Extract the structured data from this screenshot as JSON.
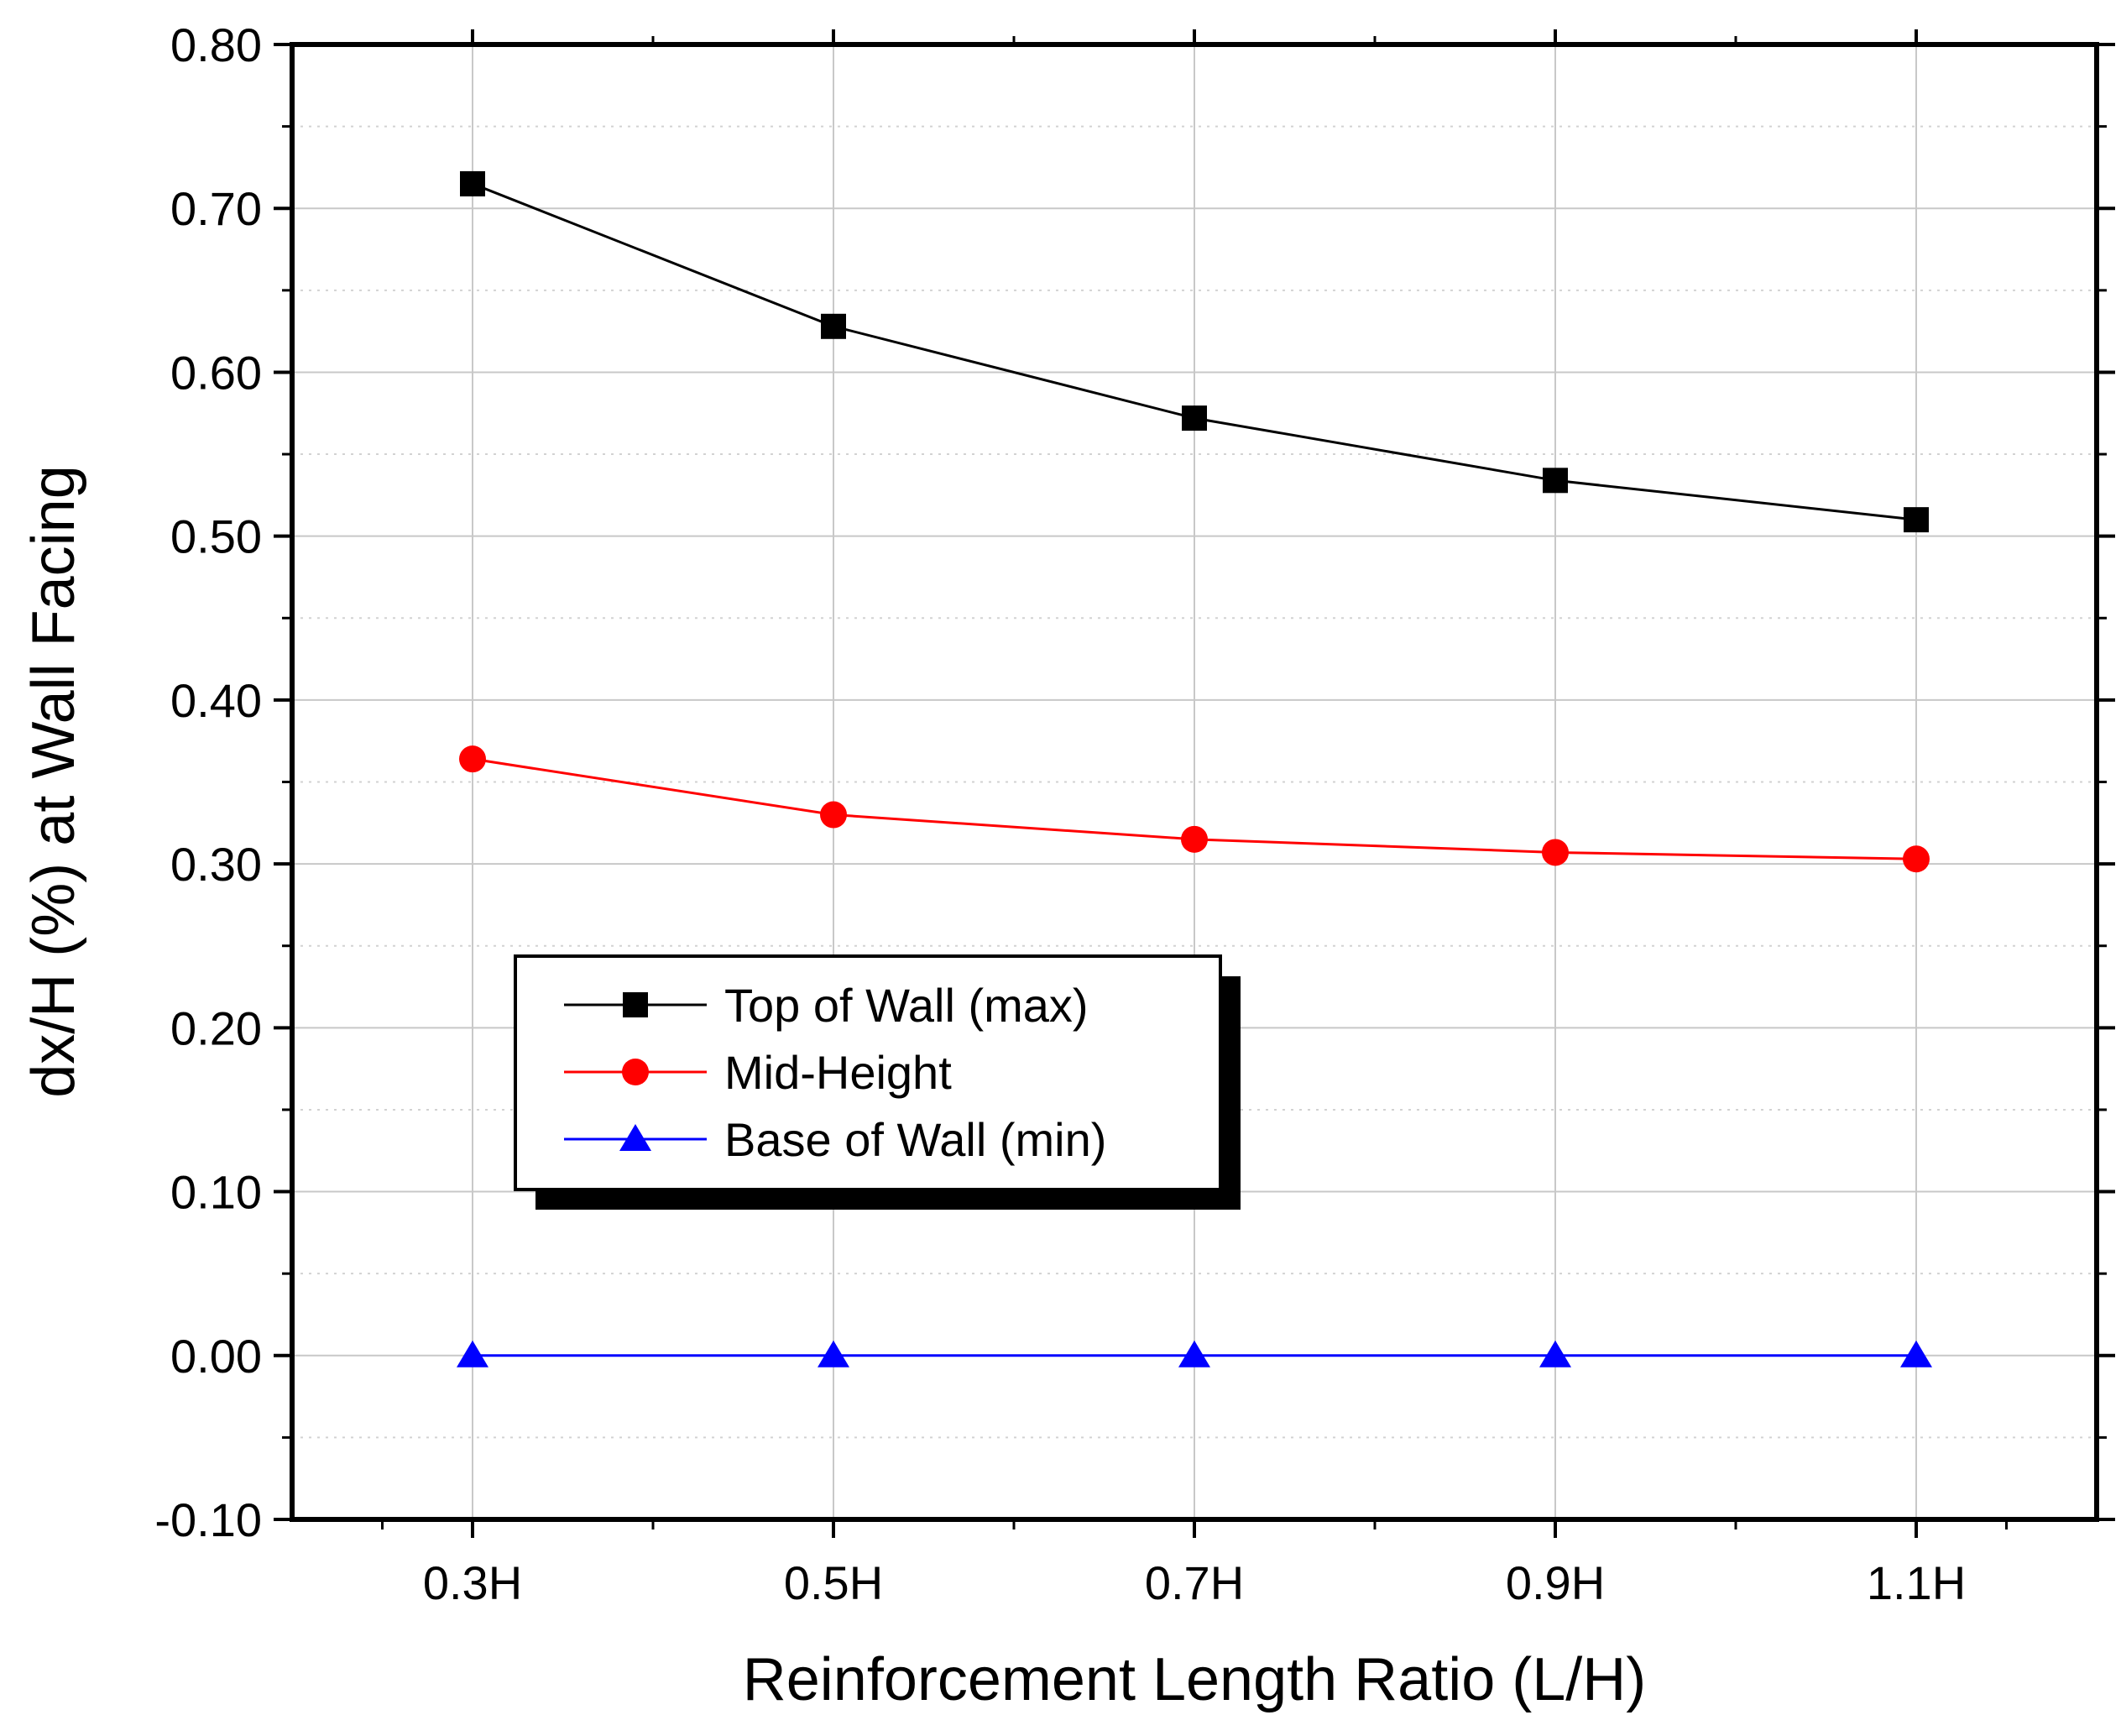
{
  "chart_data": {
    "type": "line",
    "title": "",
    "xlabel": "Reinforcement Length Ratio (L/H)",
    "ylabel": "dx/H (%) at Wall Facing",
    "categories": [
      "0.3H",
      "0.5H",
      "0.7H",
      "0.9H",
      "1.1H"
    ],
    "x": [
      0.3,
      0.5,
      0.7,
      0.9,
      1.1
    ],
    "xlim": [
      0.2,
      1.2
    ],
    "ylim": [
      -0.1,
      0.8
    ],
    "yticks": [
      -0.1,
      0.0,
      0.1,
      0.2,
      0.3,
      0.4,
      0.5,
      0.6,
      0.7,
      0.8
    ],
    "ytick_labels": [
      "-0.10",
      "0.00",
      "0.10",
      "0.20",
      "0.30",
      "0.40",
      "0.50",
      "0.60",
      "0.70",
      "0.80"
    ],
    "grid": true,
    "legend_position": "middle-left",
    "series": [
      {
        "name": "Top of Wall (max)",
        "color": "#000000",
        "marker": "square",
        "values": [
          0.715,
          0.628,
          0.572,
          0.534,
          0.51
        ]
      },
      {
        "name": "Mid-Height",
        "color": "#ff0000",
        "marker": "circle",
        "values": [
          0.364,
          0.33,
          0.315,
          0.307,
          0.303
        ]
      },
      {
        "name": "Base of Wall (min)",
        "color": "#0000ff",
        "marker": "triangle",
        "values": [
          0.0,
          0.0,
          0.0,
          0.0,
          0.0
        ]
      }
    ]
  }
}
